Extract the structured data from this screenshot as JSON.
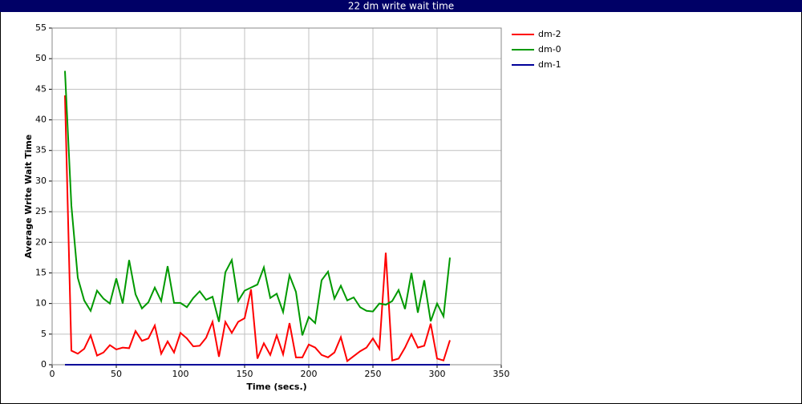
{
  "chart_data": {
    "type": "line",
    "title": "22 dm write wait time",
    "x_label": "Time (secs.)",
    "y_label": "Average Write Wait Time",
    "x": [
      10,
      15,
      20,
      25,
      30,
      35,
      40,
      45,
      50,
      55,
      60,
      65,
      70,
      75,
      80,
      85,
      90,
      95,
      100,
      105,
      110,
      115,
      120,
      125,
      130,
      135,
      140,
      145,
      150,
      155,
      160,
      165,
      170,
      175,
      180,
      185,
      190,
      195,
      200,
      205,
      210,
      215,
      220,
      225,
      230,
      235,
      240,
      245,
      250,
      255,
      260,
      265,
      270,
      275,
      280,
      285,
      290,
      295,
      300,
      305,
      310
    ],
    "series": [
      {
        "name": "dm-2",
        "color": "#ff0000",
        "values": [
          44,
          2.3,
          1.8,
          2.6,
          4.8,
          1.5,
          2,
          3.2,
          2.5,
          2.8,
          2.7,
          5.5,
          3.9,
          4.3,
          6.4,
          1.8,
          3.8,
          2,
          5.2,
          4.3,
          3,
          3.1,
          4.4,
          7,
          1.3,
          7,
          5.2,
          7,
          7.6,
          12.3,
          1,
          3.5,
          1.6,
          4.8,
          1.7,
          6.8,
          1.2,
          1.2,
          3.3,
          2.8,
          1.6,
          1.2,
          2,
          4.5,
          0.6,
          1.4,
          2.2,
          2.8,
          4.3,
          2.6,
          18.3,
          0.7,
          1,
          2.8,
          5,
          2.8,
          3.1,
          6.7,
          1,
          0.7,
          4
        ]
      },
      {
        "name": "dm-0",
        "color": "#009900",
        "values": [
          48,
          26,
          14.2,
          10.5,
          8.8,
          12.1,
          10.8,
          10,
          14.1,
          10,
          17.1,
          11.5,
          9.2,
          10.2,
          12.6,
          10.4,
          16.1,
          10.1,
          10.1,
          9.4,
          10.9,
          12,
          10.6,
          11.1,
          7,
          15.1,
          17.1,
          10.4,
          12.1,
          12.6,
          13.1,
          15.9,
          10.9,
          11.6,
          8.6,
          14.6,
          11.9,
          4.8,
          7.8,
          6.8,
          13.8,
          15.2,
          10.8,
          12.9,
          10.5,
          11,
          9.4,
          8.8,
          8.7,
          10,
          9.8,
          10.4,
          12.2,
          9.1,
          15,
          8.5,
          13.8,
          7.1,
          10,
          7.9,
          17.5
        ]
      },
      {
        "name": "dm-1",
        "color": "#000099",
        "values": [
          0,
          0,
          0,
          0,
          0,
          0,
          0,
          0,
          0,
          0,
          0,
          0,
          0,
          0,
          0,
          0,
          0,
          0,
          0,
          0,
          0,
          0,
          0,
          0,
          0,
          0,
          0,
          0,
          0,
          0,
          0,
          0,
          0,
          0,
          0,
          0,
          0,
          0,
          0,
          0,
          0,
          0,
          0,
          0,
          0,
          0,
          0,
          0,
          0,
          0,
          0,
          0,
          0,
          0,
          0,
          0,
          0,
          0,
          0,
          0,
          0
        ]
      }
    ],
    "xlim": [
      0,
      350
    ],
    "xticks": [
      0,
      50,
      100,
      150,
      200,
      250,
      300,
      350
    ],
    "ylim": [
      0,
      55
    ],
    "yticks": [
      0,
      5,
      10,
      15,
      20,
      25,
      30,
      35,
      40,
      45,
      50,
      55
    ],
    "grid": true,
    "legend": "right"
  }
}
